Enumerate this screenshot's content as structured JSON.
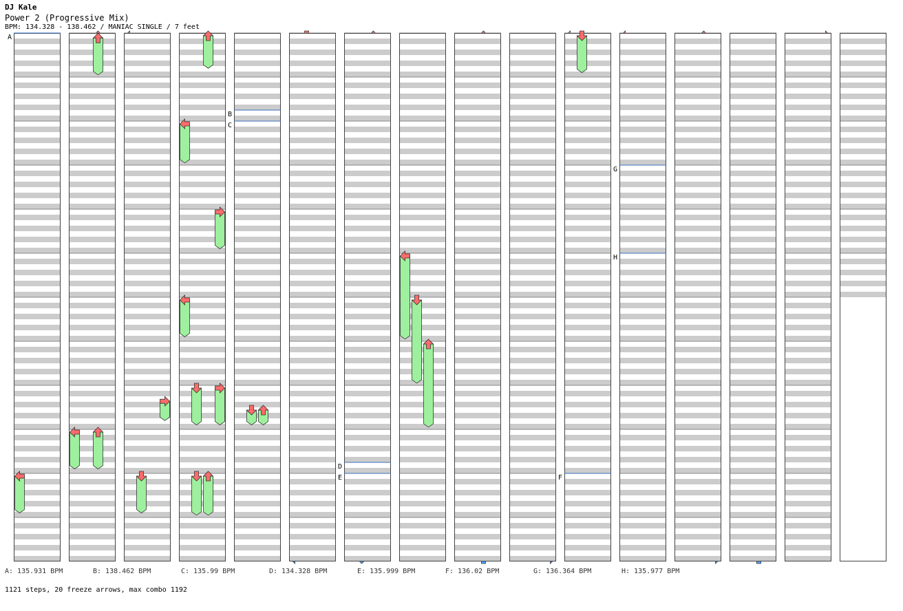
{
  "artist": "DJ Kale",
  "song_title": "Power 2 (Progressive Mix)",
  "chart_info": "BPM: 134.328 - 138.462 / MANIAC SINGLE / 7 feet",
  "summary": "1121 steps, 20 freeze arrows, max combo 1192",
  "bpm_changes": [
    {
      "label": "A",
      "legend": "A: 135.931 BPM",
      "column": 1,
      "measure": 1
    },
    {
      "label": "B",
      "legend": "B: 138.462 BPM",
      "column": 5,
      "measure": 2.75
    },
    {
      "label": "C",
      "legend": "C: 135.99 BPM",
      "column": 5,
      "measure": 3
    },
    {
      "label": "D",
      "legend": "D: 134.328 BPM",
      "column": 7,
      "measure": 10.75
    },
    {
      "label": "E",
      "legend": "E: 135.999 BPM",
      "column": 7,
      "measure": 11
    },
    {
      "label": "F",
      "legend": "F: 136.02 BPM",
      "column": 11,
      "measure": 11
    },
    {
      "label": "G",
      "legend": "G: 136.364 BPM",
      "column": 12,
      "measure": 4
    },
    {
      "label": "H",
      "legend": "H: 135.977 BPM",
      "column": 12,
      "measure": 6
    }
  ],
  "colors": {
    "quarter_note": "#ff6b6b",
    "eighth_note": "#4aa3ff",
    "sixteenth_note": "#ffa0ff",
    "freeze_arrow": "#9ef09e",
    "beat_stripe": "#cccccc",
    "bpm_line": "#3a6fc0"
  },
  "chart": {
    "columns": 16,
    "measures_per_column": 12,
    "last_column_measures": 6,
    "lanes": [
      "left",
      "down",
      "up",
      "right"
    ]
  },
  "freeze_arrows": [
    {
      "column": 1,
      "lane": 0,
      "start_measure": 11,
      "end_measure": 11.9
    },
    {
      "column": 2,
      "lane": 2,
      "start_measure": 1.05,
      "end_measure": 1.95
    },
    {
      "column": 2,
      "lane": 0,
      "start_measure": 10,
      "end_measure": 10.9
    },
    {
      "column": 2,
      "lane": 2,
      "start_measure": 10,
      "end_measure": 10.9
    },
    {
      "column": 3,
      "lane": 3,
      "start_measure": 9.3,
      "end_measure": 9.8
    },
    {
      "column": 3,
      "lane": 1,
      "start_measure": 11,
      "end_measure": 11.9
    },
    {
      "column": 4,
      "lane": 2,
      "start_measure": 1,
      "end_measure": 1.8
    },
    {
      "column": 4,
      "lane": 0,
      "start_measure": 3,
      "end_measure": 3.95
    },
    {
      "column": 4,
      "lane": 3,
      "start_measure": 5,
      "end_measure": 5.9
    },
    {
      "column": 4,
      "lane": 0,
      "start_measure": 7,
      "end_measure": 7.9
    },
    {
      "column": 4,
      "lane": 1,
      "start_measure": 9,
      "end_measure": 9.9
    },
    {
      "column": 4,
      "lane": 3,
      "start_measure": 9,
      "end_measure": 9.9
    },
    {
      "column": 4,
      "lane": 1,
      "start_measure": 11,
      "end_measure": 11.95
    },
    {
      "column": 4,
      "lane": 2,
      "start_measure": 11,
      "end_measure": 11.95
    },
    {
      "column": 5,
      "lane": 1,
      "start_measure": 9.5,
      "end_measure": 9.9
    },
    {
      "column": 5,
      "lane": 2,
      "start_measure": 9.5,
      "end_measure": 9.9
    },
    {
      "column": 8,
      "lane": 0,
      "start_measure": 6,
      "end_measure": 7.95
    },
    {
      "column": 8,
      "lane": 1,
      "start_measure": 7,
      "end_measure": 8.95
    },
    {
      "column": 8,
      "lane": 2,
      "start_measure": 8,
      "end_measure": 9.95
    },
    {
      "column": 11,
      "lane": 1,
      "start_measure": 1,
      "end_measure": 1.9
    }
  ]
}
